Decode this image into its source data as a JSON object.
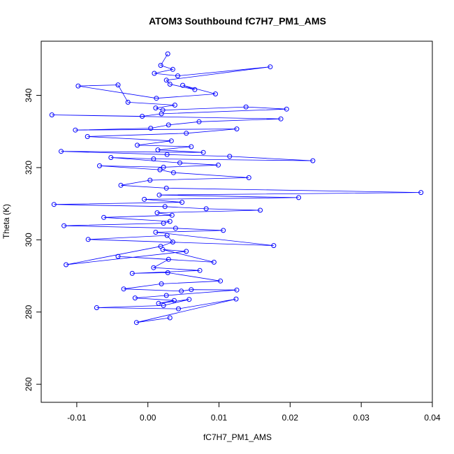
{
  "chart_data": {
    "type": "scatter",
    "connected": true,
    "title": "ATOM3 Southbound fC7H7_PM1_AMS",
    "xlabel": "fC7H7_PM1_AMS",
    "ylabel": "Theta (K)",
    "xlim": [
      -0.015,
      0.04
    ],
    "ylim": [
      255,
      355
    ],
    "x_ticks": [
      -0.01,
      0.0,
      0.01,
      0.02,
      0.03,
      0.04
    ],
    "x_tick_labels": [
      "-0.01",
      "0.00",
      "0.01",
      "0.02",
      "0.03",
      "0.04"
    ],
    "y_ticks": [
      260,
      280,
      300,
      320,
      340
    ],
    "y_tick_labels": [
      "260",
      "280",
      "300",
      "320",
      "340"
    ],
    "grid": false,
    "legend": "none",
    "series": [
      {
        "color": "#0000ff",
        "marker": "open-circle",
        "x": [
          0.0028,
          0.0018,
          0.0035,
          0.0009,
          0.0042,
          0.0172,
          0.0026,
          0.0031,
          0.0066,
          0.0049,
          0.0095,
          0.0012,
          -0.0098,
          -0.0042,
          -0.0028,
          0.0038,
          0.0011,
          0.0021,
          0.0138,
          0.0195,
          0.0019,
          -0.0008,
          -0.0135,
          0.0187,
          0.0072,
          0.0029,
          0.0004,
          -0.0102,
          0.0125,
          0.0054,
          -0.0085,
          0.0033,
          -0.0015,
          0.0061,
          0.0014,
          0.0078,
          -0.0122,
          0.0027,
          0.0115,
          0.0232,
          0.0008,
          -0.0052,
          0.0045,
          0.0099,
          0.0022,
          -0.0068,
          0.0017,
          0.0036,
          0.0142,
          0.0003,
          -0.0038,
          0.0026,
          0.0384,
          0.0016,
          0.0212,
          -0.0005,
          0.0048,
          -0.0132,
          0.0024,
          0.0082,
          0.0158,
          0.0013,
          0.0034,
          -0.0062,
          0.0031,
          0.0022,
          -0.0118,
          0.0039,
          0.0106,
          0.0011,
          0.0177,
          -0.0084,
          0.0027,
          0.0035,
          0.0018,
          -0.0115,
          0.0054,
          0.0021,
          0.0093,
          -0.0042,
          0.0029,
          0.0008,
          0.0073,
          -0.0022,
          0.0028,
          0.0102,
          0.0019,
          -0.0034,
          0.0047,
          0.0061,
          0.0125,
          0.0026,
          -0.0018,
          0.0037,
          0.0015,
          0.0058,
          0.0022,
          -0.0072,
          0.0043,
          0.0124,
          -0.0016,
          0.0031
        ],
        "y": [
          351.5,
          348.3,
          347.2,
          346.1,
          345.4,
          347.9,
          344.2,
          343.1,
          341.6,
          342.8,
          340.4,
          339.2,
          342.6,
          342.9,
          338.1,
          337.3,
          336.5,
          335.9,
          336.8,
          336.2,
          334.9,
          334.2,
          334.6,
          333.5,
          332.7,
          331.8,
          330.9,
          330.4,
          330.7,
          329.5,
          328.6,
          327.4,
          326.2,
          325.8,
          324.9,
          324.2,
          324.5,
          323.6,
          323.1,
          321.9,
          322.4,
          322.8,
          321.3,
          320.7,
          320.1,
          320.5,
          319.4,
          318.6,
          317.2,
          316.5,
          315.1,
          314.3,
          313.1,
          312.4,
          311.7,
          311.2,
          310.4,
          309.8,
          309.2,
          308.6,
          308.2,
          307.5,
          306.8,
          306.2,
          305.1,
          304.6,
          303.9,
          303.2,
          302.6,
          302.1,
          298.4,
          300.1,
          301.2,
          299.4,
          298.2,
          293.1,
          296.8,
          297.3,
          293.8,
          295.4,
          294.6,
          292.3,
          291.5,
          290.7,
          290.9,
          288.6,
          287.8,
          286.4,
          285.8,
          286.2,
          286.1,
          284.6,
          283.9,
          283.2,
          282.4,
          283.5,
          281.8,
          281.2,
          280.9,
          283.6,
          277.1,
          278.4
        ]
      }
    ]
  }
}
